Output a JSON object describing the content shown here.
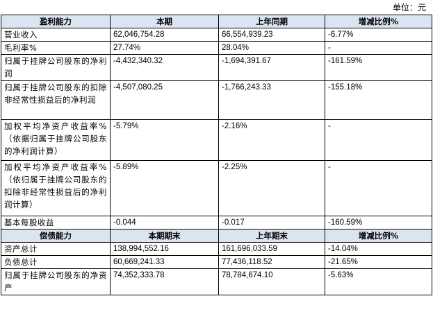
{
  "unit_label": "单位：元",
  "profit_section": {
    "headers": [
      "盈利能力",
      "本期",
      "上年同期",
      "增减比例%"
    ],
    "rows": [
      {
        "label": "营业收入",
        "current": "62,046,754.28",
        "previous": "66,554,939.23",
        "change": "-6.77%"
      },
      {
        "label": "毛利率%",
        "current": "27.74%",
        "previous": "28.04%",
        "change": "-"
      },
      {
        "label": "归属于挂牌公司股东的净利润",
        "current": "-4,432,340.32",
        "previous": "-1,694,391.67",
        "change": "-161.59%"
      },
      {
        "label": "归属于挂牌公司股东的扣除非经常性损益后的净利润",
        "current": "-4,507,080.25",
        "previous": "-1,766,243.33",
        "change": "-155.18%"
      },
      {
        "label": "加权平均净资产收益率%（依据归属于挂牌公司股东的净利润计算）",
        "current": "-5.79%",
        "previous": "-2.16%",
        "change": "-"
      },
      {
        "label": "加权平均净资产收益率%（依归属于挂牌公司股东的扣除非经常性损益后的净利润计算）",
        "current": "-5.89%",
        "previous": "-2.25%",
        "change": "-"
      },
      {
        "label": "基本每股收益",
        "current": "-0.044",
        "previous": "-0.017",
        "change": "-160.59%"
      }
    ]
  },
  "solvency_section": {
    "headers": [
      "偿债能力",
      "本期期末",
      "上年期末",
      "增减比例%"
    ],
    "rows": [
      {
        "label": "资产总计",
        "current": "138,994,552.16",
        "previous": "161,696,033.59",
        "change": "-14.04%"
      },
      {
        "label": "负债总计",
        "current": "60,669,241.33",
        "previous": "77,436,118.52",
        "change": "-21.65%"
      },
      {
        "label": "归属于挂牌公司股东的净资产",
        "current": "74,352,333.78",
        "previous": "78,784,674.10",
        "change": "-5.63%"
      }
    ]
  }
}
